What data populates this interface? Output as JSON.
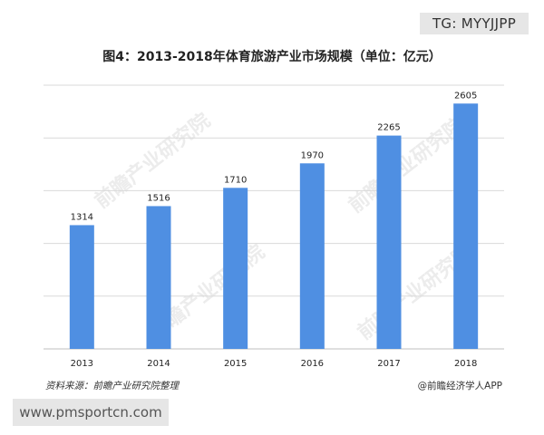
{
  "badge": "TG: MYYJJPP",
  "watermark_text": "前瞻产业研究院",
  "footer": {
    "source": "资料来源：前瞻产业研究院整理",
    "brand": "@前瞻经济学人APP"
  },
  "url_banner": "www.pmsportcn.com",
  "colors": {
    "bar": "#4f8fe2",
    "grid": "#d9d9d9",
    "axis": "#bfbfbf"
  },
  "chart_data": {
    "type": "bar",
    "title": "图4：2013-2018年体育旅游产业市场规模（单位：亿元）",
    "categories": [
      "2013",
      "2014",
      "2015",
      "2016",
      "2017",
      "2018"
    ],
    "values": [
      1314,
      1516,
      1710,
      1970,
      2265,
      2605
    ],
    "ylim": [
      0,
      2800
    ],
    "gridlines": [
      0,
      560,
      1120,
      1680,
      2240,
      2800
    ],
    "xlabel": "",
    "ylabel": "",
    "grid": true,
    "data_labels": true
  }
}
